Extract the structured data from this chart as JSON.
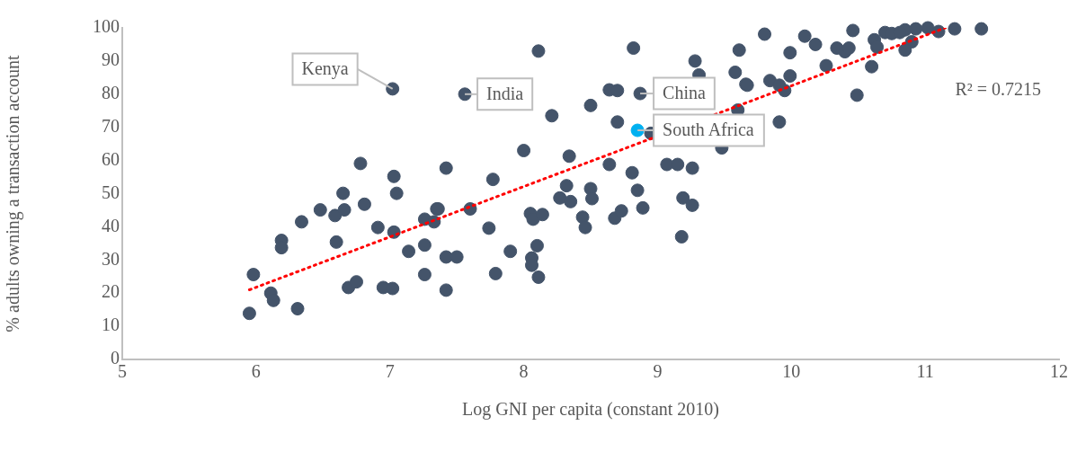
{
  "chart_data": {
    "type": "scatter",
    "xlabel": "Log GNI per capita (constant 2010)",
    "ylabel": "% adults owning a transaction account",
    "xlim": [
      5,
      12
    ],
    "xticks": [
      5,
      6,
      7,
      8,
      9,
      10,
      11,
      12
    ],
    "ylim": [
      0,
      100
    ],
    "yticks": [
      0,
      10,
      20,
      30,
      40,
      50,
      60,
      70,
      80,
      90,
      100
    ],
    "grid": false,
    "legend": false,
    "marker": "circle",
    "series": [
      {
        "color": "#44546a",
        "x": [
          5.95,
          5.98,
          6.11,
          6.13,
          6.19,
          6.19,
          6.31,
          6.34,
          6.48,
          6.59,
          6.6,
          6.65,
          6.66,
          6.69,
          6.75,
          6.78,
          6.81,
          6.91,
          6.95,
          7.02,
          7.02,
          7.03,
          7.05,
          7.03,
          7.14,
          7.26,
          7.26,
          7.26,
          7.33,
          7.35,
          7.42,
          7.56,
          8.11,
          7.36,
          7.6,
          7.77,
          7.74,
          8.0,
          7.9,
          7.42,
          7.5,
          7.79,
          7.42,
          8.21,
          8.34,
          8.32,
          8.27,
          8.35,
          8.5,
          8.64,
          8.5,
          8.51,
          8.44,
          8.46,
          8.05,
          8.07,
          8.14,
          8.1,
          8.06,
          8.06,
          8.11,
          8.64,
          8.7,
          8.82,
          8.87,
          8.7,
          8.81,
          8.85,
          8.89,
          8.68,
          8.73,
          9.07,
          9.15,
          9.26,
          9.19,
          9.26,
          9.18,
          9.28,
          9.31,
          9.61,
          9.58,
          9.66,
          9.48,
          9.6,
          8.95,
          9.3,
          9.8,
          10.1,
          10.18,
          9.99,
          10.46,
          10.34,
          10.4,
          10.43,
          10.62,
          10.64,
          10.26,
          10.6,
          9.99,
          9.84,
          9.91,
          9.95,
          9.67,
          10.49,
          9.91,
          10.85,
          10.93,
          11.02,
          10.7,
          10.75,
          10.81,
          11.1,
          10.9,
          10.85,
          11.42,
          11.22
        ],
        "values": [
          13.9,
          25.6,
          20,
          17.8,
          35.9,
          33.7,
          15.3,
          41.5,
          45.1,
          43.4,
          35.4,
          50.1,
          45.1,
          21.7,
          23.4,
          59.1,
          46.8,
          39.8,
          21.7,
          21.4,
          81.6,
          55.2,
          50.1,
          38.4,
          32.6,
          42.3,
          34.5,
          25.6,
          41.5,
          45.4,
          57.7,
          80,
          93,
          45.4,
          45.4,
          54.3,
          39.6,
          63,
          32.6,
          30.9,
          30.9,
          25.9,
          20.9,
          73.5,
          61.3,
          52.4,
          48.7,
          47.6,
          76.6,
          58.8,
          51.5,
          48.5,
          42.9,
          39.8,
          44,
          42.3,
          43.7,
          34.3,
          30.6,
          28.4,
          24.8,
          81.3,
          81.1,
          93.9,
          80.2,
          71.6,
          56.3,
          51,
          45.7,
          42.6,
          44.8,
          58.8,
          58.8,
          57.7,
          48.7,
          46.5,
          37,
          90,
          85.8,
          93.3,
          86.6,
          83,
          63.8,
          75.2,
          68.2,
          null,
          98.1,
          97.5,
          95,
          92.5,
          99.2,
          93.9,
          92.8,
          93.9,
          96.4,
          94.2,
          88.6,
          88.3,
          85.5,
          84.1,
          82.7,
          81.1,
          82.7,
          79.7,
          71.6,
          99.4,
          99.7,
          100,
          98.6,
          98.3,
          98.6,
          98.9,
          95.8,
          93.3,
          99.7,
          99.7
        ]
      },
      {
        "color": "#00b0f0",
        "x": [
          8.85
        ],
        "values": [
          69.1
        ]
      },
      {
        "type": "line",
        "color": "#ff0000",
        "line_style": "dotted",
        "marker": "none",
        "x": [
          5.95,
          11.15
        ],
        "values": [
          21,
          100
        ]
      }
    ],
    "annotations": [
      {
        "text": "Kenya",
        "x": 7.02,
        "y": 81.6
      },
      {
        "text": "India",
        "x": 7.56,
        "y": 80
      },
      {
        "text": "China",
        "x": 8.87,
        "y": 80.2
      },
      {
        "text": "South Africa",
        "x": 8.85,
        "y": 69.1
      },
      "R² = 0.7215"
    ]
  }
}
